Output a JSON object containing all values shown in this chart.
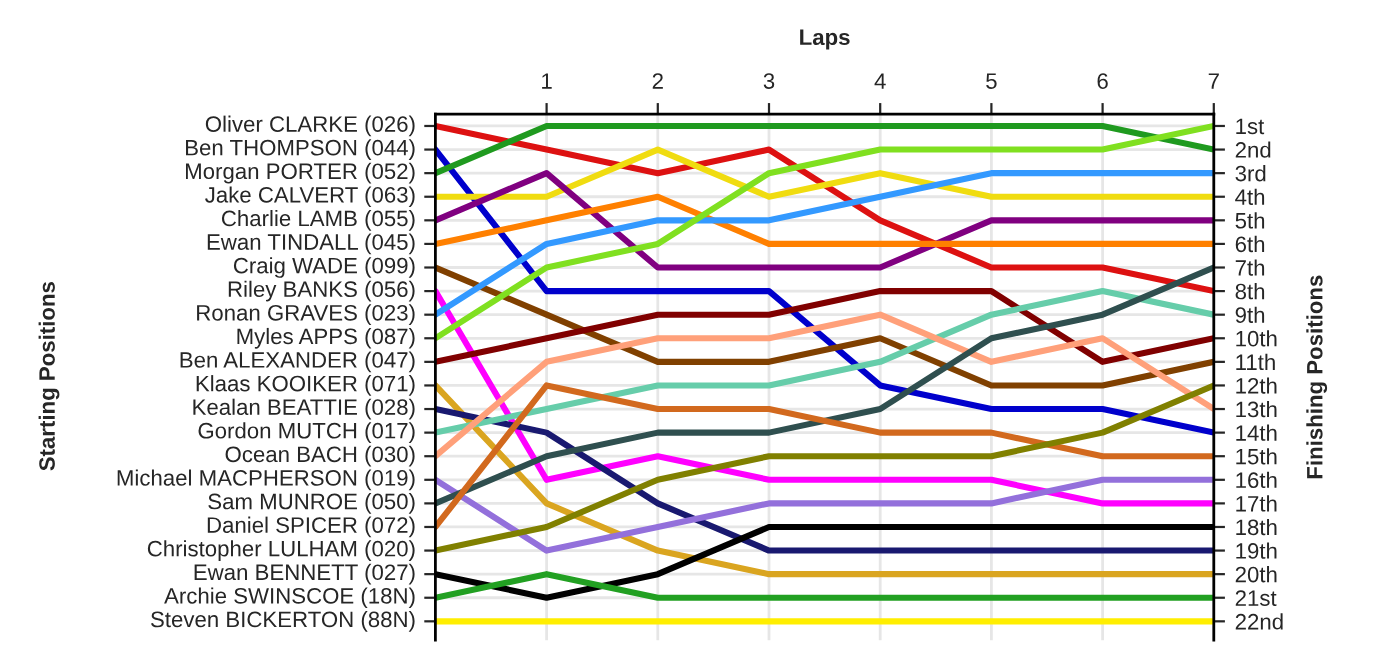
{
  "chart_data": {
    "type": "line",
    "xlabel": "Laps",
    "ylabel": "Finishing Positions",
    "x": [
      0,
      1,
      2,
      3,
      4,
      5,
      6,
      7
    ],
    "xlim": [
      0,
      7
    ],
    "xticks": [
      1,
      2,
      3,
      4,
      5,
      6,
      7
    ],
    "ylim": [
      22.8,
      0.5
    ],
    "yticks": [
      {
        "value": 1,
        "label": "1st"
      },
      {
        "value": 2,
        "label": "2nd"
      },
      {
        "value": 3,
        "label": "3rd"
      },
      {
        "value": 4,
        "label": "4th"
      },
      {
        "value": 5,
        "label": "5th"
      },
      {
        "value": 6,
        "label": "6th"
      },
      {
        "value": 7,
        "label": "7th"
      },
      {
        "value": 8,
        "label": "8th"
      },
      {
        "value": 9,
        "label": "9th"
      },
      {
        "value": 10,
        "label": "10th"
      },
      {
        "value": 11,
        "label": "11th"
      },
      {
        "value": 12,
        "label": "12th"
      },
      {
        "value": 13,
        "label": "13th"
      },
      {
        "value": 14,
        "label": "14th"
      },
      {
        "value": 15,
        "label": "15th"
      },
      {
        "value": 16,
        "label": "16th"
      },
      {
        "value": 17,
        "label": "17th"
      },
      {
        "value": 18,
        "label": "18th"
      },
      {
        "value": 19,
        "label": "19th"
      },
      {
        "value": 20,
        "label": "20th"
      },
      {
        "value": 21,
        "label": "21st"
      },
      {
        "value": 22,
        "label": "22nd"
      }
    ],
    "annotations": [
      "Starting Positions"
    ],
    "grid": true,
    "marker": "none",
    "line_style": "solid",
    "series": [
      {
        "name": "Oliver CLARKE (026)",
        "color": "#dd1111",
        "values": [
          1,
          2,
          3,
          2,
          5,
          7,
          7,
          8
        ]
      },
      {
        "name": "Ben THOMPSON (044)",
        "color": "#0000cc",
        "values": [
          2,
          8,
          8,
          8,
          12,
          13,
          13,
          14
        ]
      },
      {
        "name": "Morgan PORTER (052)",
        "color": "#1f9a1f",
        "values": [
          3,
          1,
          1,
          1,
          1,
          1,
          1,
          2
        ]
      },
      {
        "name": "Jake CALVERT (063)",
        "color": "#f0dc10",
        "values": [
          4,
          4,
          2,
          4,
          3,
          4,
          4,
          4
        ]
      },
      {
        "name": "Charlie LAMB (055)",
        "color": "#800080",
        "values": [
          5,
          3,
          7,
          7,
          7,
          5,
          5,
          5
        ]
      },
      {
        "name": "Ewan TINDALL (045)",
        "color": "#ff8000",
        "values": [
          6,
          5,
          4,
          6,
          6,
          6,
          6,
          6
        ]
      },
      {
        "name": "Craig WADE (099)",
        "color": "#804000",
        "values": [
          7,
          9,
          11,
          11,
          10,
          12,
          12,
          11
        ]
      },
      {
        "name": "Riley BANKS (056)",
        "color": "#ff00ff",
        "values": [
          8,
          16,
          15,
          16,
          16,
          16,
          17,
          17
        ]
      },
      {
        "name": "Ronan GRAVES (023)",
        "color": "#3399ff",
        "values": [
          9,
          6,
          5,
          5,
          4,
          3,
          3,
          3
        ]
      },
      {
        "name": "Myles APPS (087)",
        "color": "#80e020",
        "values": [
          10,
          7,
          6,
          3,
          2,
          2,
          2,
          1
        ]
      },
      {
        "name": "Ben ALEXANDER (047)",
        "color": "#800000",
        "values": [
          11,
          10,
          9,
          9,
          8,
          8,
          11,
          10
        ]
      },
      {
        "name": "Klaas KOOIKER (071)",
        "color": "#daa520",
        "values": [
          12,
          17,
          19,
          20,
          20,
          20,
          20,
          20
        ]
      },
      {
        "name": "Kealan BEATTIE (028)",
        "color": "#191970",
        "values": [
          13,
          14,
          17,
          19,
          19,
          19,
          19,
          19
        ]
      },
      {
        "name": "Gordon MUTCH (017)",
        "color": "#66cdaa",
        "values": [
          14,
          13,
          12,
          12,
          11,
          9,
          8,
          9
        ]
      },
      {
        "name": "Ocean BACH (030)",
        "color": "#ffa07a",
        "values": [
          15,
          11,
          10,
          10,
          9,
          11,
          10,
          13
        ]
      },
      {
        "name": "Michael MACPHERSON (019)",
        "color": "#9370db",
        "values": [
          16,
          19,
          18,
          17,
          17,
          17,
          16,
          16
        ]
      },
      {
        "name": "Sam MUNROE (050)",
        "color": "#2f4f4f",
        "values": [
          17,
          15,
          14,
          14,
          13,
          10,
          9,
          7
        ]
      },
      {
        "name": "Daniel SPICER (072)",
        "color": "#d2691e",
        "values": [
          18,
          12,
          13,
          13,
          14,
          14,
          15,
          15
        ]
      },
      {
        "name": "Christopher LULHAM (020)",
        "color": "#808000",
        "values": [
          19,
          18,
          16,
          15,
          15,
          15,
          14,
          12
        ]
      },
      {
        "name": "Ewan BENNETT (027)",
        "color": "#000000",
        "values": [
          20,
          21,
          20,
          18,
          18,
          18,
          18,
          18
        ]
      },
      {
        "name": "Archie SWINSCOE (18N)",
        "color": "#22a022",
        "values": [
          21,
          20,
          21,
          21,
          21,
          21,
          21,
          21
        ]
      },
      {
        "name": "Steven BICKERTON (88N)",
        "color": "#ffee00",
        "values": [
          22,
          22,
          22,
          22,
          22,
          22,
          22,
          22
        ]
      }
    ]
  }
}
